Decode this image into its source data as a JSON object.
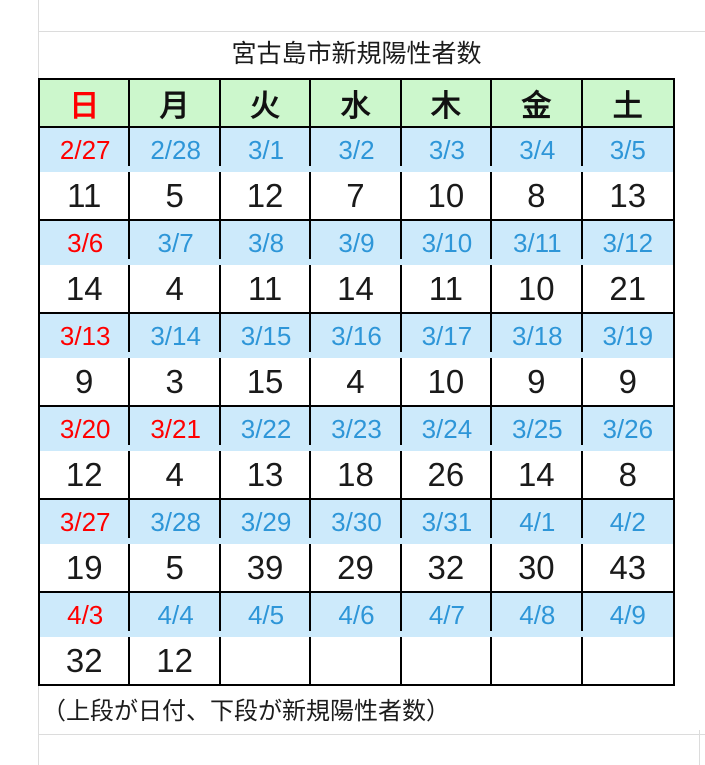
{
  "title": "宮古島市新規陽性者数",
  "weekdays": [
    {
      "label": "日",
      "red": true
    },
    {
      "label": "月"
    },
    {
      "label": "火"
    },
    {
      "label": "水"
    },
    {
      "label": "木"
    },
    {
      "label": "金"
    },
    {
      "label": "土"
    }
  ],
  "weeks": [
    {
      "dates": [
        {
          "label": "2/27",
          "red": true
        },
        {
          "label": "2/28"
        },
        {
          "label": "3/1"
        },
        {
          "label": "3/2"
        },
        {
          "label": "3/3"
        },
        {
          "label": "3/4"
        },
        {
          "label": "3/5"
        }
      ],
      "counts": [
        "11",
        "5",
        "12",
        "7",
        "10",
        "8",
        "13"
      ]
    },
    {
      "dates": [
        {
          "label": "3/6",
          "red": true
        },
        {
          "label": "3/7"
        },
        {
          "label": "3/8"
        },
        {
          "label": "3/9"
        },
        {
          "label": "3/10"
        },
        {
          "label": "3/11"
        },
        {
          "label": "3/12"
        }
      ],
      "counts": [
        "14",
        "4",
        "11",
        "14",
        "11",
        "10",
        "21"
      ]
    },
    {
      "dates": [
        {
          "label": "3/13",
          "red": true
        },
        {
          "label": "3/14"
        },
        {
          "label": "3/15"
        },
        {
          "label": "3/16"
        },
        {
          "label": "3/17"
        },
        {
          "label": "3/18"
        },
        {
          "label": "3/19"
        }
      ],
      "counts": [
        "9",
        "3",
        "15",
        "4",
        "10",
        "9",
        "9"
      ]
    },
    {
      "dates": [
        {
          "label": "3/20",
          "red": true
        },
        {
          "label": "3/21",
          "red": true
        },
        {
          "label": "3/22"
        },
        {
          "label": "3/23"
        },
        {
          "label": "3/24"
        },
        {
          "label": "3/25"
        },
        {
          "label": "3/26"
        }
      ],
      "counts": [
        "12",
        "4",
        "13",
        "18",
        "26",
        "14",
        "8"
      ]
    },
    {
      "dates": [
        {
          "label": "3/27",
          "red": true
        },
        {
          "label": "3/28"
        },
        {
          "label": "3/29"
        },
        {
          "label": "3/30"
        },
        {
          "label": "3/31"
        },
        {
          "label": "4/1"
        },
        {
          "label": "4/2"
        }
      ],
      "counts": [
        "19",
        "5",
        "39",
        "29",
        "32",
        "30",
        "43"
      ]
    },
    {
      "dates": [
        {
          "label": "4/3",
          "red": true
        },
        {
          "label": "4/4"
        },
        {
          "label": "4/5"
        },
        {
          "label": "4/6"
        },
        {
          "label": "4/7"
        },
        {
          "label": "4/8"
        },
        {
          "label": "4/9"
        }
      ],
      "counts": [
        "32",
        "12",
        "",
        "",
        "",
        "",
        ""
      ]
    }
  ],
  "footer_note": "（上段が日付、下段が新規陽性者数）",
  "colors": {
    "weekday_bg": "#ccf7cc",
    "date_bg": "#cdeafb",
    "date_text": "#2e96d8",
    "sunday_text": "#ff0000",
    "count_text": "#1a1a1a",
    "border": "#000000",
    "gridline": "#dcdcdc"
  },
  "chart_data": {
    "type": "table",
    "title": "宮古島市新規陽性者数",
    "columns": [
      "日",
      "月",
      "火",
      "水",
      "木",
      "金",
      "土"
    ],
    "rows": [
      {
        "dates": [
          "2/27",
          "2/28",
          "3/1",
          "3/2",
          "3/3",
          "3/4",
          "3/5"
        ],
        "values": [
          11,
          5,
          12,
          7,
          10,
          8,
          13
        ]
      },
      {
        "dates": [
          "3/6",
          "3/7",
          "3/8",
          "3/9",
          "3/10",
          "3/11",
          "3/12"
        ],
        "values": [
          14,
          4,
          11,
          14,
          11,
          10,
          21
        ]
      },
      {
        "dates": [
          "3/13",
          "3/14",
          "3/15",
          "3/16",
          "3/17",
          "3/18",
          "3/19"
        ],
        "values": [
          9,
          3,
          15,
          4,
          10,
          9,
          9
        ]
      },
      {
        "dates": [
          "3/20",
          "3/21",
          "3/22",
          "3/23",
          "3/24",
          "3/25",
          "3/26"
        ],
        "values": [
          12,
          4,
          13,
          18,
          26,
          14,
          8
        ]
      },
      {
        "dates": [
          "3/27",
          "3/28",
          "3/29",
          "3/30",
          "3/31",
          "4/1",
          "4/2"
        ],
        "values": [
          19,
          5,
          39,
          29,
          32,
          30,
          43
        ]
      },
      {
        "dates": [
          "4/3",
          "4/4",
          "4/5",
          "4/6",
          "4/7",
          "4/8",
          "4/9"
        ],
        "values": [
          32,
          12,
          null,
          null,
          null,
          null,
          null
        ]
      }
    ],
    "red_dates": [
      "2/27",
      "3/6",
      "3/13",
      "3/20",
      "3/21",
      "3/27",
      "4/3"
    ],
    "note": "（上段が日付、下段が新規陽性者数）"
  }
}
